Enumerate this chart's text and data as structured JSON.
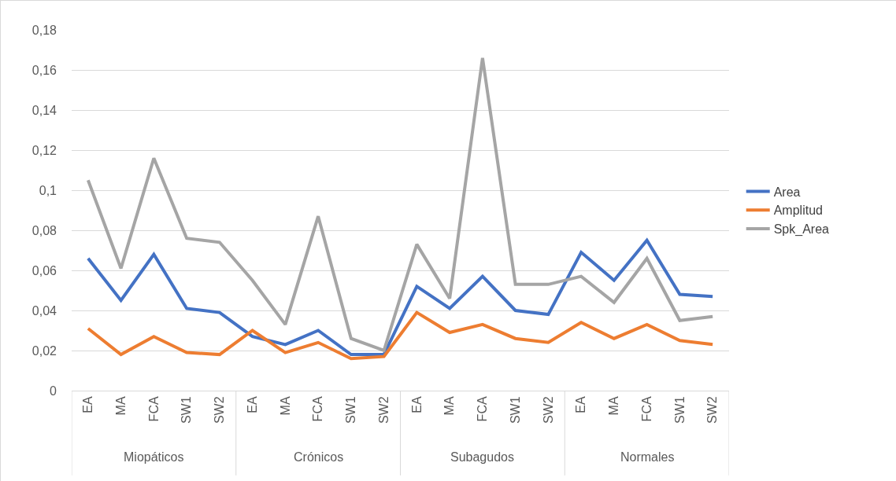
{
  "chart_data": {
    "type": "line",
    "categories": [
      "EA",
      "MA",
      "FCA",
      "SW1",
      "SW2",
      "EA",
      "MA",
      "FCA",
      "SW1",
      "SW2",
      "EA",
      "MA",
      "FCA",
      "SW1",
      "SW2",
      "EA",
      "MA",
      "FCA",
      "SW1",
      "SW2"
    ],
    "annotations": [
      "Miopáticos",
      "Crónicos",
      "Subagudos",
      "Normales"
    ],
    "series": [
      {
        "name": "Area",
        "color": "#4472c4",
        "values": [
          0.066,
          0.045,
          0.068,
          0.041,
          0.039,
          0.027,
          0.023,
          0.03,
          0.018,
          0.018,
          0.052,
          0.041,
          0.057,
          0.04,
          0.038,
          0.069,
          0.055,
          0.075,
          0.048,
          0.047
        ]
      },
      {
        "name": "Amplitud",
        "color": "#ed7d31",
        "values": [
          0.031,
          0.018,
          0.027,
          0.019,
          0.018,
          0.03,
          0.019,
          0.024,
          0.016,
          0.017,
          0.039,
          0.029,
          0.033,
          0.026,
          0.024,
          0.034,
          0.026,
          0.033,
          0.025,
          0.023
        ]
      },
      {
        "name": "Spk_Area",
        "color": "#a5a5a5",
        "values": [
          0.105,
          0.061,
          0.116,
          0.076,
          0.074,
          0.055,
          0.033,
          0.087,
          0.026,
          0.02,
          0.073,
          0.046,
          0.166,
          0.053,
          0.053,
          0.057,
          0.044,
          0.066,
          0.035,
          0.037
        ]
      }
    ],
    "ylim": [
      0,
      0.18
    ],
    "yticks": [
      0,
      {
        "value": 0.02,
        "label": "0,02"
      },
      {
        "value": 0.04,
        "label": "0,04"
      },
      {
        "value": 0.06,
        "label": "0,06"
      },
      {
        "value": 0.08,
        "label": "0,08"
      },
      {
        "value": 0.1,
        "label": "0,1"
      },
      {
        "value": 0.12,
        "label": "0,12"
      },
      {
        "value": 0.14,
        "label": "0,14"
      },
      {
        "value": 0.16,
        "label": "0,16"
      },
      {
        "value": 0.18,
        "label": "0,18"
      }
    ],
    "grid": "y",
    "legend": "right",
    "marker": "none",
    "line_style": "solid"
  }
}
